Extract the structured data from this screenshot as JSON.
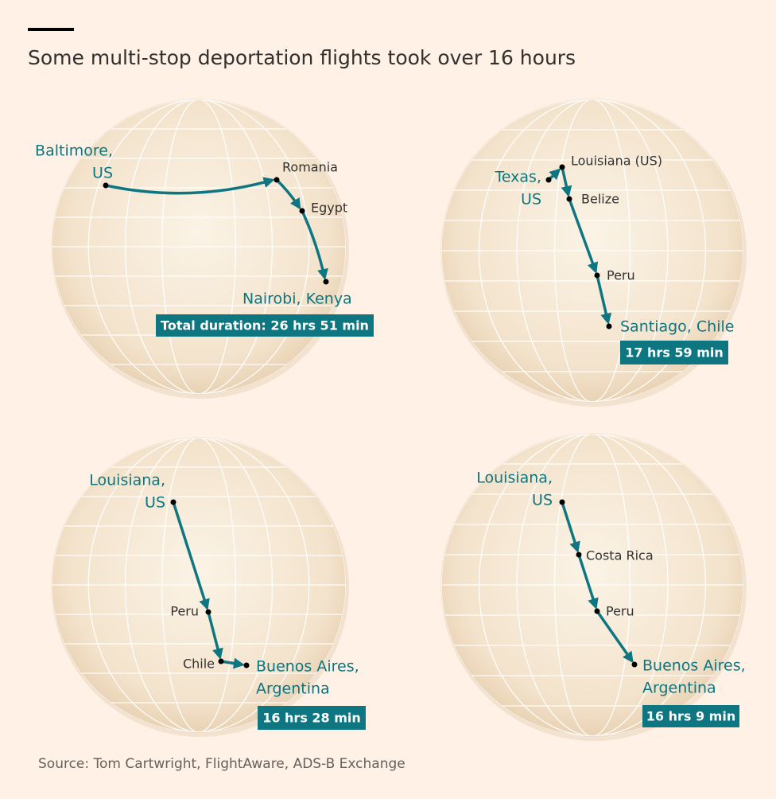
{
  "title": "Some multi-stop deportation flights took over 16 hours",
  "maps": [
    {
      "origin": [
        "Baltimore,",
        "US"
      ],
      "stops": [
        "Romania",
        "Egypt"
      ],
      "destination": [
        "Nairobi, Kenya"
      ],
      "duration": "Total duration: 26 hrs 51 min"
    },
    {
      "origin": [
        "Texas,",
        "US"
      ],
      "stops": [
        "Louisiana (US)",
        "Belize",
        "Peru"
      ],
      "destination": [
        "Santiago, Chile"
      ],
      "duration": "17 hrs 59 min"
    },
    {
      "origin": [
        "Louisiana,",
        "US"
      ],
      "stops": [
        "Peru",
        "Chile"
      ],
      "destination": [
        "Buenos Aires,",
        "Argentina"
      ],
      "duration": "16 hrs 28 min"
    },
    {
      "origin": [
        "Louisiana,",
        "US"
      ],
      "stops": [
        "Costa Rica",
        "Peru"
      ],
      "destination": [
        "Buenos Aires,",
        "Argentina"
      ],
      "duration": "16 hrs 9 min"
    }
  ],
  "source": "Source: Tom Cartwright, FlightAware, ADS-B Exchange"
}
